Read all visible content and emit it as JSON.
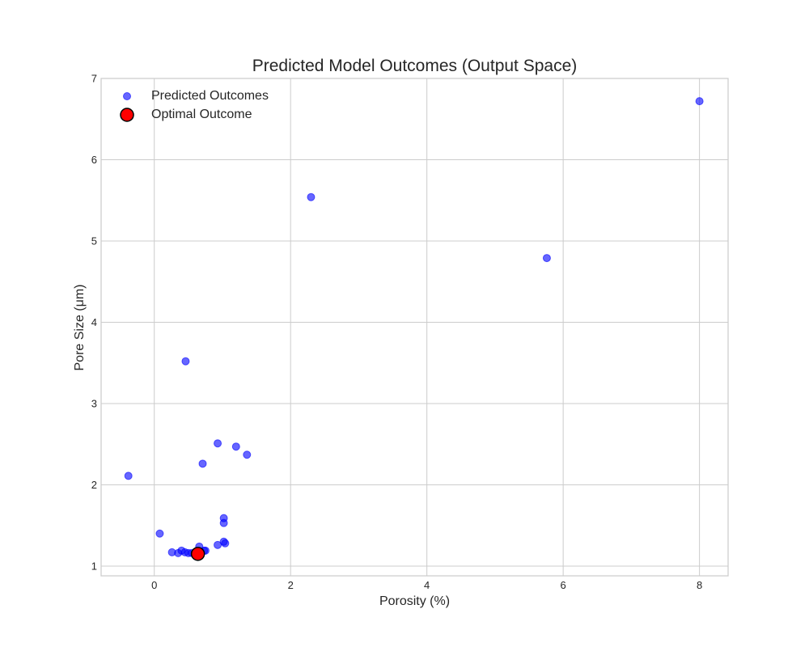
{
  "chart_data": {
    "type": "scatter",
    "title": "Predicted Model Outcomes (Output Space)",
    "xlabel": "Porosity (%)",
    "ylabel": "Pore Size (μm)",
    "xlim": [
      -0.78,
      8.42
    ],
    "ylim": [
      0.88,
      7.0
    ],
    "xticks": [
      0,
      2,
      4,
      6,
      8
    ],
    "yticks": [
      1,
      2,
      3,
      4,
      5,
      6,
      7
    ],
    "grid": true,
    "legend_position": "top-left",
    "series": [
      {
        "name": "Predicted Outcomes",
        "color": "#0000ff",
        "x": [
          8.0,
          2.3,
          5.76,
          0.46,
          -0.38,
          0.93,
          1.2,
          1.36,
          0.71,
          1.02,
          1.02,
          0.08,
          1.02,
          1.04,
          0.93,
          0.66,
          0.26,
          0.35,
          0.4,
          0.45,
          0.5,
          0.55,
          0.6,
          0.73,
          0.75
        ],
        "y": [
          6.72,
          5.54,
          4.79,
          3.52,
          2.11,
          2.51,
          2.47,
          2.37,
          2.26,
          1.59,
          1.53,
          1.4,
          1.3,
          1.28,
          1.26,
          1.24,
          1.17,
          1.16,
          1.19,
          1.17,
          1.16,
          1.16,
          1.16,
          1.19,
          1.19
        ]
      },
      {
        "name": "Optimal Outcome",
        "color": "#ff0000",
        "x": [
          0.64
        ],
        "y": [
          1.15
        ]
      }
    ]
  }
}
